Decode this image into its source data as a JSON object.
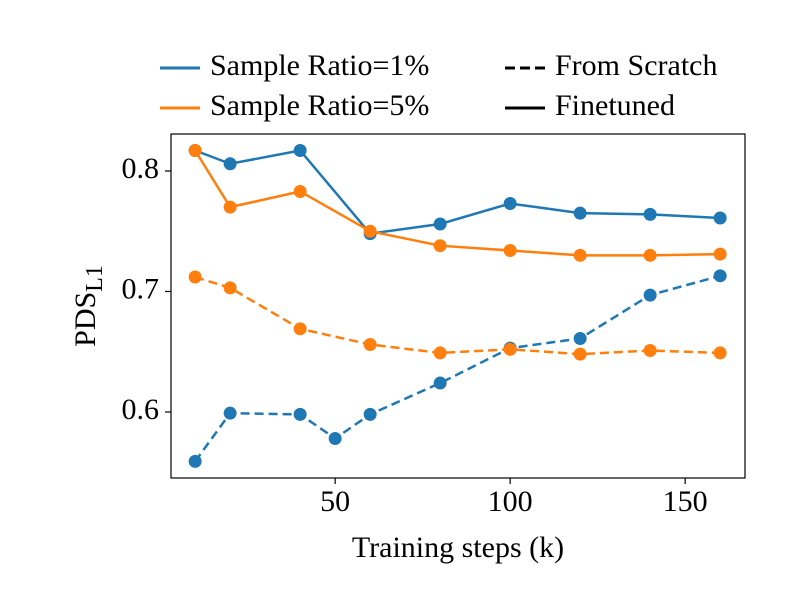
{
  "chart_data": {
    "type": "line",
    "xlabel": "Training steps (k)",
    "ylabel": "PDS",
    "ylabel_sub": "L1",
    "xlim": [
      3.1,
      167.1
    ],
    "ylim": [
      0.5452,
      0.8307
    ],
    "xticks": [
      50,
      100,
      150
    ],
    "yticks": [
      {
        "value": 0.6,
        "label": "0.6"
      },
      {
        "value": 0.7,
        "label": "0.7"
      },
      {
        "value": 0.8,
        "label": "0.8"
      }
    ],
    "legend": [
      {
        "label": "Sample Ratio=1%",
        "color": "#1f77b4",
        "dashed": false
      },
      {
        "label": "Sample Ratio=5%",
        "color": "#ff7f0e",
        "dashed": false
      },
      {
        "label": "From Scratch",
        "color": "#000000",
        "dashed": true
      },
      {
        "label": "Finetuned",
        "color": "#000000",
        "dashed": false
      }
    ],
    "series": [
      {
        "color": "#1f77b4",
        "dashed": false,
        "x": [
          10,
          20,
          40,
          60,
          80,
          100,
          120,
          140,
          160
        ],
        "values": [
          0.817,
          0.806,
          0.817,
          0.748,
          0.756,
          0.773,
          0.765,
          0.764,
          0.761
        ]
      },
      {
        "color": "#ff7f0e",
        "dashed": false,
        "x": [
          10,
          20,
          40,
          60,
          80,
          100,
          120,
          140,
          160
        ],
        "values": [
          0.817,
          0.77,
          0.783,
          0.75,
          0.738,
          0.734,
          0.73,
          0.73,
          0.731
        ]
      },
      {
        "color": "#1f77b4",
        "dashed": true,
        "x": [
          10,
          20,
          40,
          50,
          60,
          80,
          100,
          120,
          140,
          160
        ],
        "values": [
          0.559,
          0.599,
          0.598,
          0.578,
          0.598,
          0.624,
          0.653,
          0.661,
          0.697,
          0.713
        ]
      },
      {
        "color": "#ff7f0e",
        "dashed": true,
        "x": [
          10,
          20,
          40,
          60,
          80,
          100,
          120,
          140,
          160
        ],
        "values": [
          0.712,
          0.703,
          0.669,
          0.656,
          0.649,
          0.652,
          0.648,
          0.651,
          0.649
        ]
      }
    ]
  }
}
